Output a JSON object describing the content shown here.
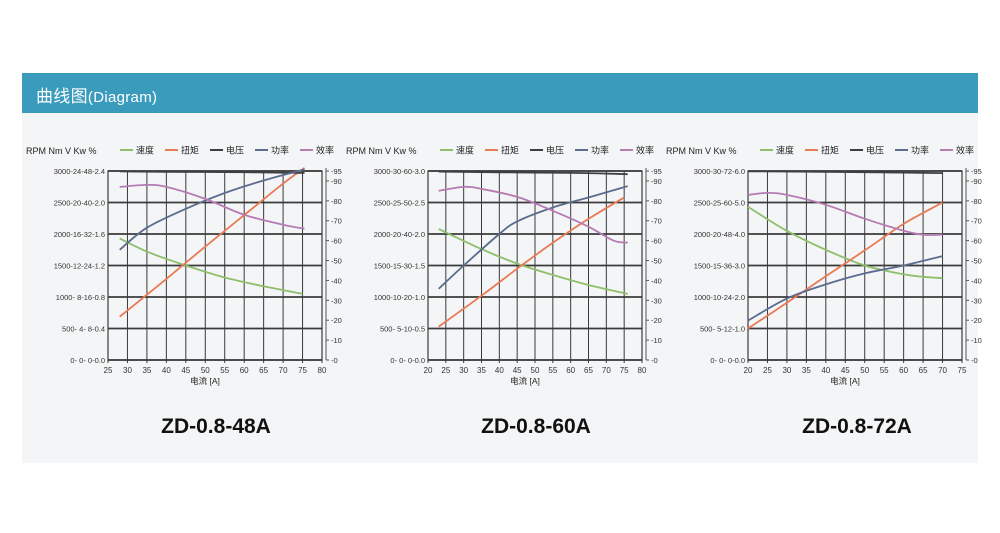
{
  "header": {
    "title_cn": "曲线图",
    "title_en": "(Diagram)"
  },
  "colors": {
    "header_bg": "#3b9bbd",
    "speed": "#8dc06a",
    "torque": "#ea7a55",
    "voltage": "#3c3f45",
    "power": "#5b6c8e",
    "efficiency": "#b67ab5",
    "grid": "#3a3a3a"
  },
  "legend": {
    "units": "RPM Nm V Kw %",
    "speed": "速度",
    "torque": "扭矩",
    "voltage": "电压",
    "power": "功率",
    "efficiency": "效率"
  },
  "chart_data": [
    {
      "type": "line",
      "model": "ZD-0.8-48A",
      "xlabel": "电流 [A]",
      "xlim": [
        25,
        80
      ],
      "x_ticks": [
        "25",
        "30",
        "35",
        "40",
        "45",
        "50",
        "55",
        "60",
        "65",
        "70",
        "75",
        "80"
      ],
      "left_ticks": [
        "0- 0- 0-0.0",
        "500- 4- 8-0.4",
        "1000- 8-16-0.8",
        "1500-12-24-1.2",
        "2000-16-32-1.6",
        "2500-20-40-2.0",
        "3000-24-48-2.4"
      ],
      "right_ticks": [
        "0",
        "10",
        "20",
        "30",
        "40",
        "50",
        "60",
        "70",
        "80",
        "90",
        "95"
      ],
      "axes": {
        "rpm": [
          0,
          3000
        ],
        "nm": [
          0,
          24
        ],
        "v": [
          0,
          48
        ],
        "kw": [
          0,
          2.4
        ],
        "pct": [
          0,
          95
        ]
      },
      "series": [
        {
          "name": "速度",
          "axis": "rpm",
          "x": [
            28,
            35,
            45,
            55,
            65,
            75
          ],
          "y": [
            1930,
            1720,
            1500,
            1310,
            1170,
            1050
          ]
        },
        {
          "name": "扭矩",
          "axis": "nm",
          "x": [
            28,
            40,
            50,
            60,
            70,
            75.5
          ],
          "y": [
            5.5,
            10.3,
            14.4,
            18.4,
            22.4,
            24.4
          ]
        },
        {
          "name": "电压",
          "axis": "v",
          "x": [
            28,
            40,
            60,
            75.5
          ],
          "y": [
            47.9,
            47.8,
            47.7,
            47.5
          ]
        },
        {
          "name": "功率",
          "axis": "kw",
          "x": [
            28,
            35,
            45,
            55,
            65,
            75.5
          ],
          "y": [
            1.4,
            1.68,
            1.92,
            2.12,
            2.28,
            2.42
          ]
        },
        {
          "name": "效率",
          "axis": "pct",
          "x": [
            28,
            35,
            40,
            50,
            60,
            70,
            75.5
          ],
          "y": [
            87,
            88,
            87,
            81,
            73,
            68,
            66
          ]
        }
      ]
    },
    {
      "type": "line",
      "model": "ZD-0.8-60A",
      "xlabel": "电流 [A]",
      "xlim": [
        20,
        80
      ],
      "x_ticks": [
        "20",
        "25",
        "30",
        "35",
        "40",
        "45",
        "50",
        "55",
        "60",
        "65",
        "70",
        "75",
        "80"
      ],
      "left_ticks": [
        "0- 0- 0-0.0",
        "500- 5-10-0.5",
        "1000-10-20-1.0",
        "1500-15-30-1.5",
        "2000-20-40-2.0",
        "2500-25-50-2.5",
        "3000-30-60-3.0"
      ],
      "right_ticks": [
        "0",
        "10",
        "20",
        "30",
        "40",
        "50",
        "60",
        "70",
        "80",
        "90",
        "95"
      ],
      "axes": {
        "rpm": [
          0,
          3000
        ],
        "nm": [
          0,
          30
        ],
        "v": [
          0,
          60
        ],
        "kw": [
          0,
          3.0
        ],
        "pct": [
          0,
          95
        ]
      },
      "series": [
        {
          "name": "速度",
          "axis": "rpm",
          "x": [
            23,
            35,
            45,
            55,
            65,
            76
          ],
          "y": [
            2080,
            1760,
            1530,
            1350,
            1190,
            1050
          ]
        },
        {
          "name": "扭矩",
          "axis": "nm",
          "x": [
            23,
            35,
            45,
            55,
            65,
            75
          ],
          "y": [
            5.3,
            10.2,
            14.5,
            18.6,
            22.4,
            25.8
          ]
        },
        {
          "name": "电压",
          "axis": "v",
          "x": [
            23,
            40,
            60,
            76
          ],
          "y": [
            59.8,
            59.6,
            59.4,
            59.0
          ]
        },
        {
          "name": "功率",
          "axis": "kw",
          "x": [
            23,
            30,
            40,
            45,
            55,
            65,
            76
          ],
          "y": [
            1.13,
            1.5,
            2.0,
            2.2,
            2.42,
            2.58,
            2.76
          ]
        },
        {
          "name": "效率",
          "axis": "pct",
          "x": [
            23,
            30,
            35,
            45,
            55,
            65,
            72,
            76
          ],
          "y": [
            85,
            87,
            86,
            82,
            75,
            67,
            60,
            59
          ]
        }
      ]
    },
    {
      "type": "line",
      "model": "ZD-0.8-72A",
      "xlabel": "电流 [A]",
      "xlim": [
        20,
        75
      ],
      "x_ticks": [
        "20",
        "25",
        "30",
        "35",
        "40",
        "45",
        "50",
        "55",
        "60",
        "65",
        "70",
        "75"
      ],
      "left_ticks": [
        "0- 0- 0-0.0",
        "500- 5-12-1.0",
        "1000-10-24-2.0",
        "1500-15-36-3.0",
        "2000-20-48-4.0",
        "2500-25-60-5.0",
        "3000-30-72-6.0"
      ],
      "right_ticks": [
        "0",
        "10",
        "20",
        "30",
        "40",
        "50",
        "60",
        "70",
        "80",
        "90",
        "95"
      ],
      "axes": {
        "rpm": [
          0,
          3000
        ],
        "nm": [
          0,
          30
        ],
        "v": [
          0,
          72
        ],
        "kw": [
          0,
          6.0
        ],
        "pct": [
          0,
          95
        ]
      },
      "series": [
        {
          "name": "速度",
          "axis": "rpm",
          "x": [
            20,
            30,
            40,
            50,
            60,
            65,
            70
          ],
          "y": [
            2430,
            2050,
            1750,
            1500,
            1360,
            1320,
            1300
          ]
        },
        {
          "name": "扭矩",
          "axis": "nm",
          "x": [
            20,
            30,
            40,
            50,
            60,
            70
          ],
          "y": [
            5.0,
            9.1,
            13.3,
            17.4,
            21.6,
            25.0
          ]
        },
        {
          "name": "电压",
          "axis": "v",
          "x": [
            20,
            40,
            60,
            70
          ],
          "y": [
            71.9,
            71.7,
            71.4,
            71.2
          ]
        },
        {
          "name": "功率",
          "axis": "kw",
          "x": [
            20,
            30,
            40,
            50,
            60,
            70
          ],
          "y": [
            1.25,
            1.95,
            2.4,
            2.75,
            3.0,
            3.3
          ]
        },
        {
          "name": "效率",
          "axis": "pct",
          "x": [
            20,
            25,
            30,
            40,
            50,
            60,
            65,
            70
          ],
          "y": [
            83,
            84,
            83,
            78,
            71,
            65,
            63,
            63
          ]
        }
      ]
    }
  ]
}
